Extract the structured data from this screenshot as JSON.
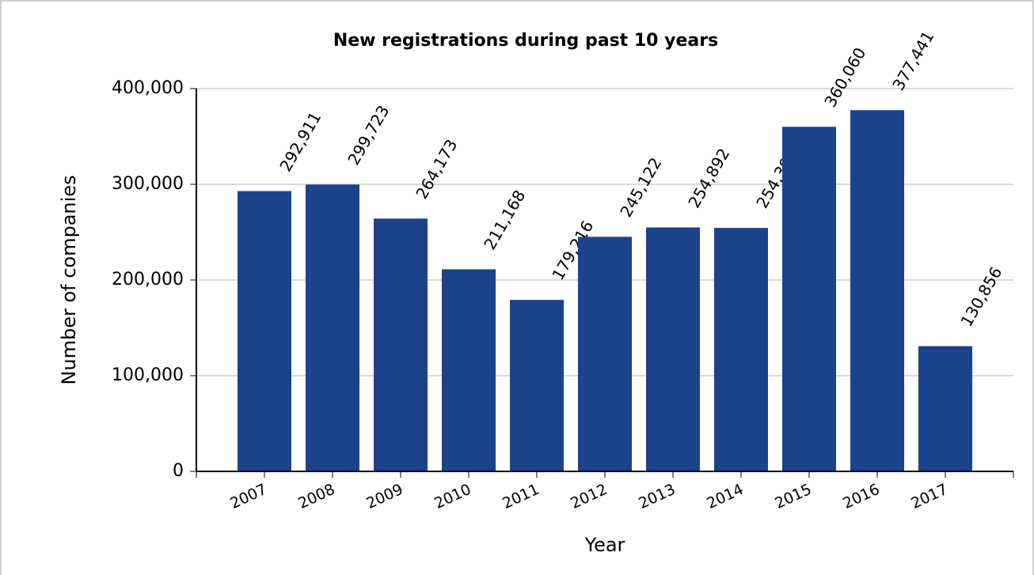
{
  "chart_data": {
    "type": "bar",
    "title": "New registrations during past 10 years",
    "x_label": "Year",
    "y_label": "Number of companies",
    "categories": [
      "2007",
      "2008",
      "2009",
      "2010",
      "2011",
      "2012",
      "2013",
      "2014",
      "2015",
      "2016",
      "2017"
    ],
    "values": [
      292911,
      299723,
      264173,
      211168,
      179216,
      245122,
      254892,
      254395,
      360060,
      377441,
      130856
    ],
    "value_labels": [
      "292,911",
      "299,723",
      "264,173",
      "211,168",
      "179,216",
      "245,122",
      "254,892",
      "254,395",
      "360,060",
      "377,441",
      "130,856"
    ],
    "color": "#1c428b",
    "ylim": [
      0,
      400000
    ],
    "yticks": [
      0,
      {
        "value": 100000,
        "label": "100,000"
      },
      {
        "value": 200000,
        "label": "200,000"
      },
      {
        "value": 300000,
        "label": "300,000"
      },
      {
        "value": 400000,
        "label": "400,000"
      }
    ],
    "grid": true
  }
}
